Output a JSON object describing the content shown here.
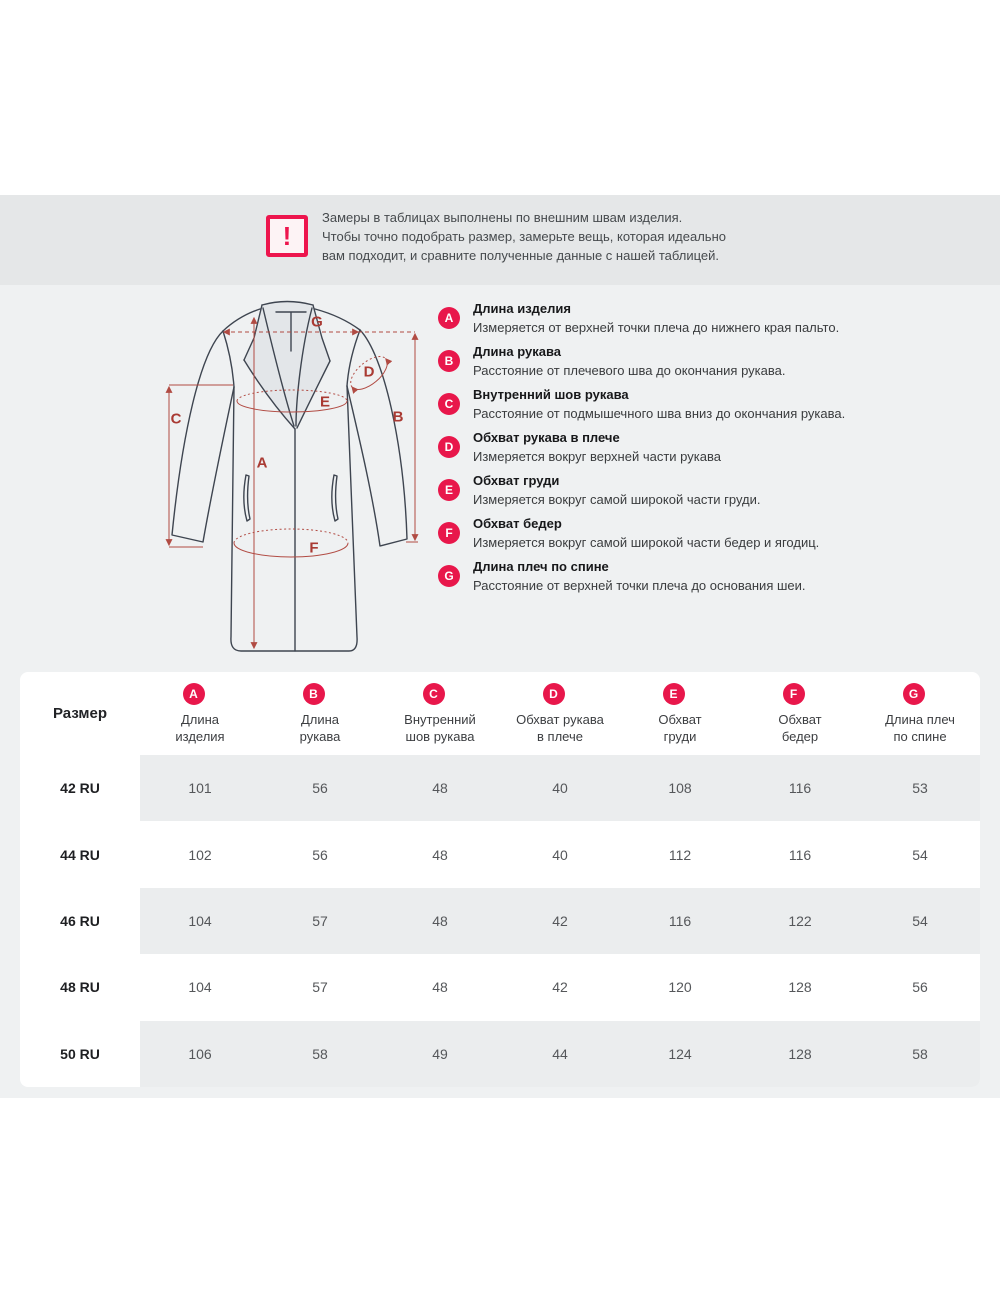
{
  "colors": {
    "accent_pink": "#e8174b",
    "icon_red": "#ed154d",
    "diagram_line_red": "#b14b43",
    "diagram_label_red": "#a93a33",
    "coat_outline": "#3e4550",
    "banner_bg": "#e5e7e8",
    "section_bg": "#eff1f2",
    "row_stripe": "#ebedee"
  },
  "banner": {
    "icon_glyph": "!",
    "lines": [
      "Замеры в таблицах выполнены по внешним швам изделия.",
      "Чтобы точно подобрать размер, замерьте вещь, которая идеально",
      "вам подходит, и сравните полученные данные с нашей таблицей."
    ]
  },
  "measurements": [
    {
      "letter": "A",
      "title": "Длина изделия",
      "desc": "Измеряется от верхней точки плеча до нижнего края пальто."
    },
    {
      "letter": "B",
      "title": "Длина рукава",
      "desc": "Расстояние от плечевого шва до окончания рукава."
    },
    {
      "letter": "C",
      "title": "Внутренний шов рукава",
      "desc": "Расстояние от подмышечного шва вниз до окончания рукава."
    },
    {
      "letter": "D",
      "title": "Обхват рукава в плече",
      "desc": "Измеряется вокруг верхней части рукава"
    },
    {
      "letter": "E",
      "title": "Обхват груди",
      "desc": "Измеряется вокруг самой широкой части груди."
    },
    {
      "letter": "F",
      "title": "Обхват бедер",
      "desc": "Измеряется вокруг самой широкой части бедер и ягодиц."
    },
    {
      "letter": "G",
      "title": "Длина плеч по спине",
      "desc": "Расстояние от верхней точки плеча до основания шеи."
    }
  ],
  "table": {
    "size_header": "Размер",
    "columns": [
      {
        "letter": "A",
        "label": "Длина\nизделия"
      },
      {
        "letter": "B",
        "label": "Длина\nрукава"
      },
      {
        "letter": "C",
        "label": "Внутренний\nшов рукава"
      },
      {
        "letter": "D",
        "label": "Обхват рукава\nв плече"
      },
      {
        "letter": "E",
        "label": "Обхват\nгруди"
      },
      {
        "letter": "F",
        "label": "Обхват\nбедер"
      },
      {
        "letter": "G",
        "label": "Длина плеч\nпо спине"
      }
    ],
    "rows": [
      {
        "size": "42 RU",
        "values": [
          101,
          56,
          48,
          40,
          108,
          116,
          53
        ]
      },
      {
        "size": "44 RU",
        "values": [
          102,
          56,
          48,
          40,
          112,
          116,
          54
        ]
      },
      {
        "size": "46 RU",
        "values": [
          104,
          57,
          48,
          42,
          116,
          122,
          54
        ]
      },
      {
        "size": "48 RU",
        "values": [
          104,
          57,
          48,
          42,
          120,
          128,
          56
        ]
      },
      {
        "size": "50 RU",
        "values": [
          106,
          58,
          49,
          44,
          124,
          128,
          58
        ]
      }
    ]
  }
}
